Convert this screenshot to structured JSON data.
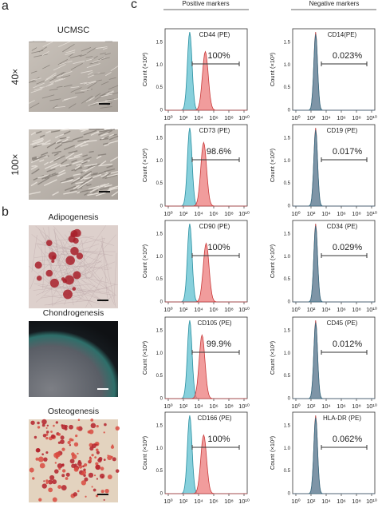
{
  "panels": {
    "a": {
      "label": "a",
      "title": "UCMSC",
      "images": [
        {
          "label": "40×"
        },
        {
          "label": "100×"
        }
      ]
    },
    "b": {
      "label": "b",
      "images": [
        {
          "title": "Adipogenesis"
        },
        {
          "title": "Chondrogenesis"
        },
        {
          "title": "Osteogenesis"
        }
      ]
    },
    "c": {
      "label": "c",
      "headers": [
        "Positive markers",
        "Negative markers"
      ],
      "x_ticks": [
        "10⁰",
        "10²",
        "10⁴",
        "10⁶",
        "10⁸",
        "10¹⁰"
      ],
      "y_label": "Count (×10³)",
      "y_ticks": [
        "0",
        "0.5",
        "1.0",
        "1.5"
      ],
      "positive": [
        {
          "marker": "CD44 (PE)",
          "percent": "100%"
        },
        {
          "marker": "CD73 (PE)",
          "percent": "98.6%"
        },
        {
          "marker": "CD90 (PE)",
          "percent": "100%"
        },
        {
          "marker": "CD105 (PE)",
          "percent": "99.9%"
        },
        {
          "marker": "CD166 (PE)",
          "percent": "100%"
        }
      ],
      "negative": [
        {
          "marker": "CD14(PE)",
          "percent": "0.023%"
        },
        {
          "marker": "CD19 (PE)",
          "percent": "0.017%"
        },
        {
          "marker": "CD34 (PE)",
          "percent": "0.029%"
        },
        {
          "marker": "CD45 (PE)",
          "percent": "0.012%"
        },
        {
          "marker": "HLA-DR (PE)",
          "percent": "0.062%"
        }
      ]
    }
  }
}
